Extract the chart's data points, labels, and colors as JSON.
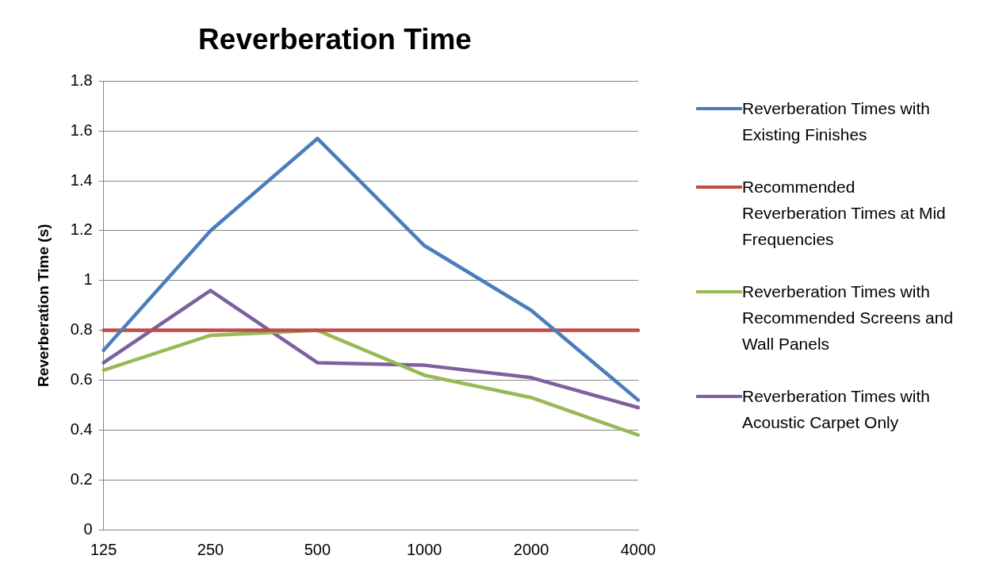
{
  "chart_data": {
    "type": "line",
    "title": "Reverberation Time",
    "ylabel": "Reverberation Time (s)",
    "categories": [
      "125",
      "250",
      "500",
      "1000",
      "2000",
      "4000"
    ],
    "series": [
      {
        "name": "Reverberation Times with Existing Finishes",
        "color": "#4a7ebb",
        "values": [
          0.72,
          1.2,
          1.57,
          1.14,
          0.88,
          0.52
        ]
      },
      {
        "name": "Recommended Reverberation Times at Mid Frequencies",
        "color": "#be4b48",
        "values": [
          0.8,
          0.8,
          0.8,
          0.8,
          0.8,
          0.8
        ]
      },
      {
        "name": "Reverberation Times with Recommended Screens and Wall Panels",
        "color": "#98b954",
        "values": [
          0.64,
          0.78,
          0.8,
          0.62,
          0.53,
          0.38
        ]
      },
      {
        "name": "Reverberation Times with Acoustic Carpet Only",
        "color": "#7d60a0",
        "values": [
          0.67,
          0.96,
          0.67,
          0.66,
          0.61,
          0.49
        ]
      }
    ],
    "ylim": [
      0,
      1.8
    ],
    "yticks": [
      0,
      0.2,
      0.4,
      0.6,
      0.8,
      1,
      1.2,
      1.4,
      1.6,
      1.8
    ],
    "grid": "y",
    "legend": "right",
    "marker": "none",
    "line_style": "solid"
  }
}
